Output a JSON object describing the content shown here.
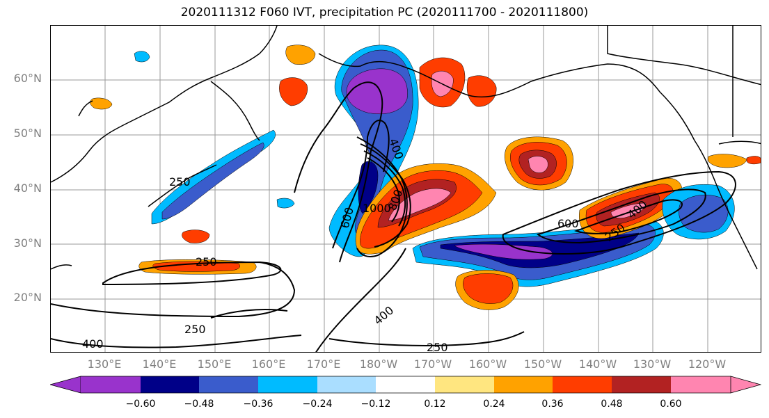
{
  "title": "2020111312 F060 IVT, precipitation PC (2020111700 - 2020111800)",
  "latitude_labels": [
    "60°N",
    "50°N",
    "40°N",
    "30°N",
    "20°N"
  ],
  "longitude_labels": [
    "130°E",
    "140°E",
    "150°E",
    "160°E",
    "170°E",
    "180°W",
    "170°W",
    "160°W",
    "150°W",
    "140°W",
    "130°W",
    "120°W"
  ],
  "colorbar": {
    "colors": [
      "#9933cc",
      "#000088",
      "#3a5ccc",
      "#00bbff",
      "#aadeff",
      "#ffffff",
      "#ffe680",
      "#ffa200",
      "#ff3d00",
      "#b22222",
      "#ff85b0"
    ],
    "tick_labels": [
      "−0.60",
      "−0.48",
      "−0.36",
      "−0.24",
      "−0.12",
      "0.12",
      "0.24",
      "0.36",
      "0.48",
      "0.60"
    ]
  },
  "contour_labels": [
    {
      "key": "c250a",
      "text": "250"
    },
    {
      "key": "c250b",
      "text": "250"
    },
    {
      "key": "c250c",
      "text": "250"
    },
    {
      "key": "c250d",
      "text": "250"
    },
    {
      "key": "c250e",
      "text": "250"
    },
    {
      "key": "c400a",
      "text": "400"
    },
    {
      "key": "c400b",
      "text": "400"
    },
    {
      "key": "c400c",
      "text": "400"
    },
    {
      "key": "c400d",
      "text": "400"
    },
    {
      "key": "c600a",
      "text": "600"
    },
    {
      "key": "c600b",
      "text": "600"
    },
    {
      "key": "c800",
      "text": "800"
    },
    {
      "key": "c1000",
      "text": "1000"
    }
  ]
}
